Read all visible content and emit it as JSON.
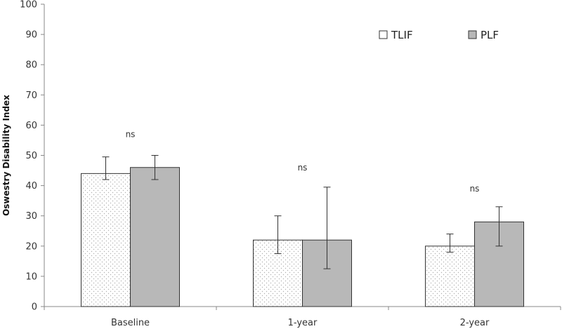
{
  "chart_data": {
    "type": "bar",
    "categories": [
      "Baseline",
      "1-year",
      "2-year"
    ],
    "ylabel": "Oswestry Disability Index",
    "ylim": [
      0,
      100
    ],
    "yticks": [
      0,
      10,
      20,
      30,
      40,
      50,
      60,
      70,
      80,
      90,
      100
    ],
    "grid": false,
    "legend_position": "top-right",
    "series": [
      {
        "name": "TLIF",
        "values": [
          44,
          22,
          20
        ],
        "error_low": [
          42,
          17.5,
          18
        ],
        "error_high": [
          49.5,
          30,
          24
        ],
        "fill": "dotted-white",
        "color": "#ffffff"
      },
      {
        "name": "PLF",
        "values": [
          46,
          22,
          28
        ],
        "error_low": [
          42,
          12.5,
          20
        ],
        "error_high": [
          50,
          39.5,
          33
        ],
        "fill": "solid-gray",
        "color": "#b8b8b8"
      }
    ],
    "annotations": [
      {
        "category": "Baseline",
        "text": "ns",
        "y": 56
      },
      {
        "category": "1-year",
        "text": "ns",
        "y": 45
      },
      {
        "category": "2-year",
        "text": "ns",
        "y": 38
      }
    ]
  }
}
